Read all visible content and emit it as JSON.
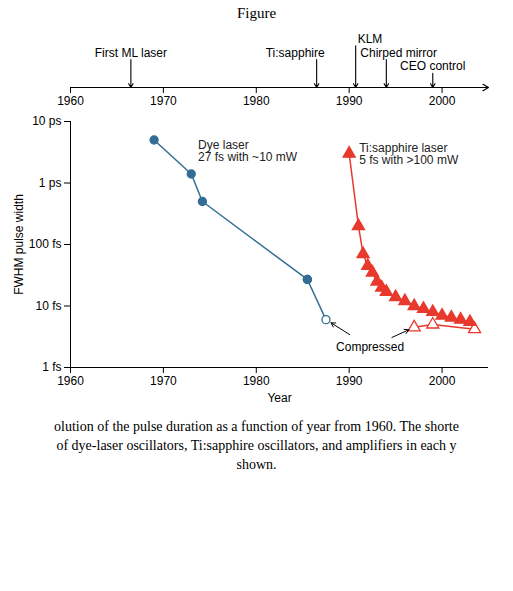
{
  "heading": "Figure",
  "chart_data": [
    {
      "type": "timeline",
      "xlim": [
        1960,
        2005
      ],
      "xticks": [
        1960,
        1970,
        1980,
        1990,
        2000
      ],
      "x": [
        1966.5,
        1986.5,
        1990.7,
        1994,
        1999
      ],
      "labels": [
        "First ML laser",
        "Ti:sapphire",
        "KLM",
        "Chirped mirror",
        "CEO control"
      ]
    },
    {
      "type": "line",
      "xlabel": "Year",
      "ylabel": "FWHM pulse width",
      "log": "y",
      "xlim": [
        1960,
        2005
      ],
      "xticks": [
        1960,
        1970,
        1980,
        1990,
        2000
      ],
      "ylim": [
        1,
        10000
      ],
      "yticks": [
        {
          "value": 1,
          "label": "1 fs"
        },
        {
          "value": 10,
          "label": "10 fs"
        },
        {
          "value": 100,
          "label": "100 fs"
        },
        {
          "value": 1000,
          "label": "1 ps"
        },
        {
          "value": 10000,
          "label": "10 ps"
        }
      ],
      "series": [
        {
          "name": "Dye laser",
          "color": "#336d93",
          "marker": "circle",
          "x": [
            1969,
            1973,
            1974.2,
            1985.5
          ],
          "values": [
            5000,
            1400,
            500,
            27
          ]
        },
        {
          "name": "Compressed",
          "color": "#336d93",
          "marker": "circle-open",
          "x": [
            1985.5,
            1987.5
          ],
          "values": [
            27,
            6
          ]
        },
        {
          "name": "Ti:sapphire laser",
          "color": "#e8392c",
          "marker": "triangle",
          "x": [
            1990,
            1991,
            1991.5,
            1992,
            1992.5,
            1993,
            1993.5,
            1994,
            1995,
            1996,
            1997,
            1998,
            1999,
            2000,
            2001,
            2002,
            2003
          ],
          "values": [
            3000,
            200,
            70,
            45,
            35,
            25,
            20,
            17,
            14,
            12,
            10,
            9,
            8,
            7,
            6.5,
            6,
            5.5
          ]
        },
        {
          "name": "Compressed",
          "color": "#e8392c",
          "marker": "triangle-open",
          "x": [
            1997,
            1999,
            2003.5
          ],
          "values": [
            4.5,
            5,
            4.2
          ]
        }
      ],
      "annotations": [
        {
          "text": "27 fs with ~10 mW",
          "series": "Dye laser"
        },
        {
          "text": "5 fs with >100 mW",
          "series": "Ti:sapphire laser"
        },
        {
          "text": "Compressed",
          "series": "Compressed"
        }
      ]
    }
  ],
  "caption": [
    "olution of the pulse duration as a function of year from 1960. The shorte",
    "of dye-laser oscillators, Ti:sapphire oscillators, and amplifiers in each y",
    "shown."
  ]
}
